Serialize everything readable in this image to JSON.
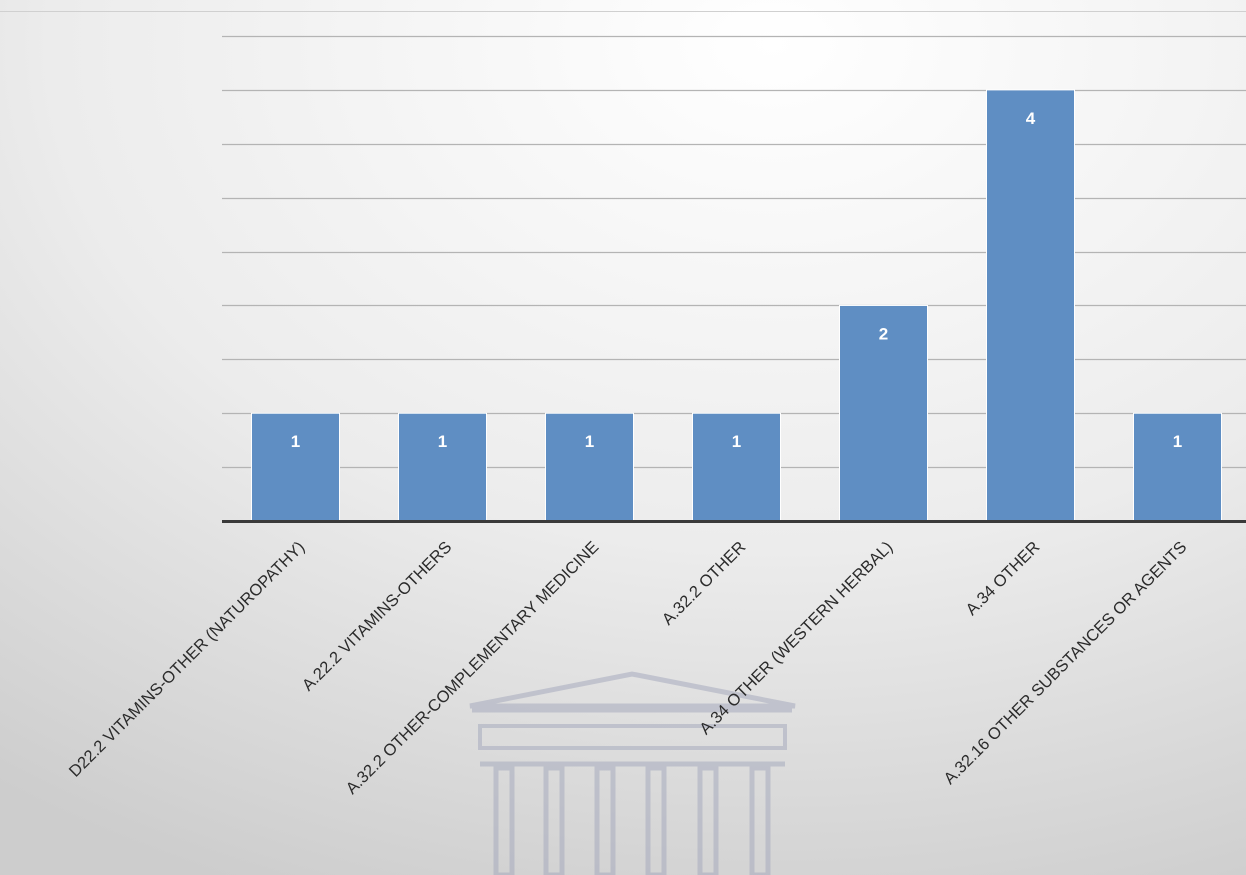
{
  "chart_data": {
    "type": "bar",
    "title": "",
    "xlabel": "",
    "ylabel": "",
    "categories": [
      "D22.2 VITAMINS-OTHER (NATUROPATHY)",
      "A.22.2 VITAMINS-OTHERS",
      "A.32.2 OTHER-COMPLEMENTARY MEDICINE",
      "A.32.2 OTHER",
      "A.34 OTHER (WESTERN HERBAL)",
      "A.34 OTHER",
      "A.32.16 OTHER SUBSTANCES OR AGENTS"
    ],
    "values": [
      1,
      1,
      1,
      1,
      2,
      4,
      1
    ],
    "data_labels": [
      "1",
      "1",
      "1",
      "1",
      "2",
      "4",
      "1"
    ],
    "ylim": [
      0,
      4.5
    ],
    "ytick_step": 0.5,
    "grid": true,
    "colors": {
      "bar": "#5f8ec3",
      "bar_edge": "#ffffff",
      "gridline": "#b4b4b4",
      "axis": "#3a3a3a",
      "label": "#2b2b2b",
      "data_label": "#ffffff"
    }
  }
}
